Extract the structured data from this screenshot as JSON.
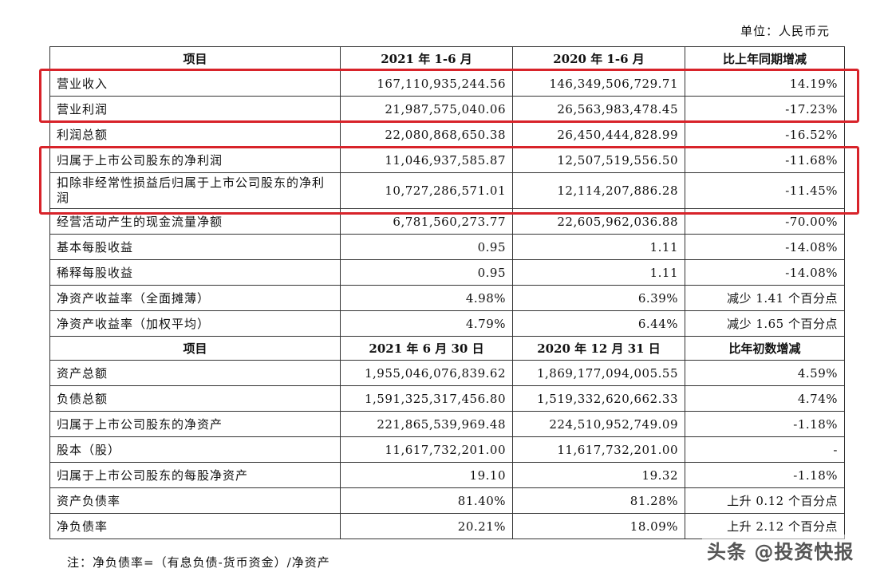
{
  "unit_label": "单位：人民币元",
  "table1": {
    "headers": [
      "项目",
      "2021 年 1-6 月",
      "2020 年 1-6 月",
      "比上年同期增减"
    ],
    "rows": [
      [
        "营业收入",
        "167,110,935,244.56",
        "146,349,506,729.71",
        "14.19%"
      ],
      [
        "营业利润",
        "21,987,575,040.06",
        "26,563,983,478.45",
        "-17.23%"
      ],
      [
        "利润总额",
        "22,080,868,650.38",
        "26,450,444,828.99",
        "-16.52%"
      ],
      [
        "归属于上市公司股东的净利润",
        "11,046,937,585.87",
        "12,507,519,556.50",
        "-11.68%"
      ],
      [
        "扣除非经常性损益后归属于上市公司股东的净利润",
        "10,727,286,571.01",
        "12,114,207,886.28",
        "-11.45%"
      ],
      [
        "经营活动产生的现金流量净额",
        "6,781,560,273.77",
        "22,605,962,036.88",
        "-70.00%"
      ],
      [
        "基本每股收益",
        "0.95",
        "1.11",
        "-14.08%"
      ],
      [
        "稀释每股收益",
        "0.95",
        "1.11",
        "-14.08%"
      ],
      [
        "净资产收益率（全面摊薄）",
        "4.98%",
        "6.39%",
        "减少 1.41 个百分点"
      ],
      [
        "净资产收益率（加权平均）",
        "4.79%",
        "6.44%",
        "减少 1.65 个百分点"
      ]
    ]
  },
  "table2": {
    "headers": [
      "项目",
      "2021 年 6 月 30 日",
      "2020 年 12 月 31 日",
      "比年初数增减"
    ],
    "rows": [
      [
        "资产总额",
        "1,955,046,076,839.62",
        "1,869,177,094,005.55",
        "4.59%"
      ],
      [
        "负债总额",
        "1,591,325,317,456.80",
        "1,519,332,620,662.33",
        "4.74%"
      ],
      [
        "归属于上市公司股东的净资产",
        "221,865,539,969.48",
        "224,510,952,749.09",
        "-1.18%"
      ],
      [
        "股本（股）",
        "11,617,732,201.00",
        "11,617,732,201.00",
        "-"
      ],
      [
        "归属于上市公司股东的每股净资产",
        "19.10",
        "19.32",
        "-1.18%"
      ],
      [
        "资产负债率",
        "81.40%",
        "81.28%",
        "上升 0.12 个百分点"
      ],
      [
        "净负债率",
        "20.21%",
        "18.09%",
        "上升 2.12 个百分点"
      ]
    ]
  },
  "note": "注：净负债率=（有息负债-货币资金）/净资产",
  "watermark": "头条 @投资快报",
  "highlight_color": "#d8232a"
}
